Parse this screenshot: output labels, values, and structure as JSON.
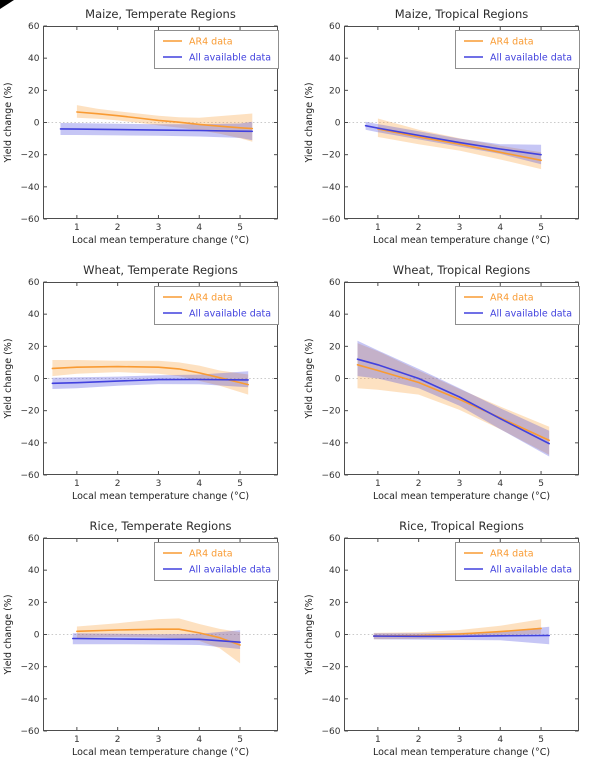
{
  "figure": {
    "background": "#ffffff",
    "corner_mark_color": "#000000"
  },
  "axes_common": {
    "xlabel": "Local mean temperature change (°C)",
    "ylabel": "Yield change (%)",
    "xlim": [
      0.17,
      5.93
    ],
    "ylim": [
      -60,
      60
    ],
    "xticks": [
      1,
      2,
      3,
      4,
      5
    ],
    "yticks": [
      60,
      40,
      20,
      0,
      -20,
      -40,
      -60
    ],
    "zero_line": true,
    "grid": false,
    "legend_position": "upper right"
  },
  "legend": {
    "entries": [
      {
        "label": "AR4 data",
        "color": "#F99B33"
      },
      {
        "label": "All available data",
        "color": "#4141DE"
      }
    ]
  },
  "colors": {
    "ar4": "#F99B33",
    "all_data": "#4141DE",
    "band_opacity": 0.3,
    "spine": "#4d4d4d",
    "zero_line": "#c9c9c9"
  },
  "chart_data": [
    {
      "type": "line",
      "title": "Maize, Temperate Regions",
      "xlabel": "Local mean temperature change (°C)",
      "ylabel": "Yield change (%)",
      "series": [
        {
          "name": "AR4 data",
          "color": "#F99B33",
          "x": [
            1,
            1.5,
            2,
            2.5,
            3,
            3.5,
            4,
            4.5,
            5,
            5.3
          ],
          "y": [
            6.5,
            5.5,
            4.2,
            2.8,
            1.3,
            0.2,
            -1.2,
            -2.3,
            -3.3,
            -3.8
          ],
          "band_lo": [
            3,
            2.3,
            1.3,
            -0.2,
            -1.8,
            -3.2,
            -4.8,
            -7,
            -9.8,
            -12
          ],
          "band_hi": [
            10.8,
            8.6,
            7,
            5.6,
            4.2,
            3.3,
            3,
            4,
            5,
            5.6
          ]
        },
        {
          "name": "All available data",
          "color": "#4141DE",
          "x": [
            0.6,
            1,
            2,
            3,
            4,
            5,
            5.3
          ],
          "y": [
            -4,
            -4.1,
            -4.4,
            -4.7,
            -5,
            -5.4,
            -5.5
          ],
          "band_lo": [
            -7.8,
            -7.8,
            -8,
            -8.3,
            -8.7,
            -9.6,
            -11
          ],
          "band_hi": [
            -0.3,
            -0.4,
            -0.8,
            -1.1,
            -1.1,
            -0.6,
            0.5
          ]
        }
      ]
    },
    {
      "type": "line",
      "title": "Maize, Tropical Regions",
      "xlabel": "Local mean temperature change (°C)",
      "ylabel": "Yield change (%)",
      "series": [
        {
          "name": "AR4 data",
          "color": "#F99B33",
          "x": [
            1,
            2,
            3,
            4,
            5
          ],
          "y": [
            -4,
            -9,
            -13.5,
            -18.5,
            -23.5
          ],
          "band_lo": [
            -9,
            -13.5,
            -17.5,
            -23,
            -29
          ],
          "band_hi": [
            2.5,
            -4.5,
            -9.8,
            -14.5,
            -18.5
          ]
        },
        {
          "name": "All available data",
          "color": "#4141DE",
          "x": [
            0.7,
            1,
            2,
            3,
            4,
            5
          ],
          "y": [
            -2,
            -3.5,
            -8,
            -12.5,
            -16.5,
            -20
          ],
          "band_lo": [
            -4.5,
            -6,
            -10.5,
            -15,
            -19.5,
            -26
          ],
          "band_hi": [
            0.5,
            -1,
            -5.5,
            -10,
            -13.5,
            -13.8
          ]
        }
      ]
    },
    {
      "type": "line",
      "title": "Wheat, Temperate Regions",
      "xlabel": "Local mean temperature change (°C)",
      "ylabel": "Yield change (%)",
      "series": [
        {
          "name": "AR4 data",
          "color": "#F99B33",
          "x": [
            0.4,
            1,
            2,
            3,
            3.5,
            4,
            4.5,
            5.2
          ],
          "y": [
            6.3,
            7,
            7.4,
            7,
            6,
            3.5,
            0.5,
            -3.8
          ],
          "band_lo": [
            1.5,
            3,
            4,
            3,
            1.5,
            -1.5,
            -4.5,
            -10
          ],
          "band_hi": [
            11.5,
            11.5,
            11,
            11,
            10,
            8,
            5,
            2.5
          ]
        },
        {
          "name": "All available data",
          "color": "#4141DE",
          "x": [
            0.4,
            1,
            2,
            3,
            4,
            5.2
          ],
          "y": [
            -3,
            -2.6,
            -1.6,
            -0.7,
            -0.6,
            -0.9
          ],
          "band_lo": [
            -6.5,
            -6,
            -4.5,
            -3.5,
            -3.6,
            -5.5
          ],
          "band_hi": [
            0.5,
            0.8,
            1.2,
            2,
            2.4,
            4.5
          ]
        }
      ]
    },
    {
      "type": "line",
      "title": "Wheat, Tropical Regions",
      "xlabel": "Local mean temperature change (°C)",
      "ylabel": "Yield change (%)",
      "series": [
        {
          "name": "AR4 data",
          "color": "#F99B33",
          "x": [
            0.5,
            1,
            2,
            3,
            4,
            5.2
          ],
          "y": [
            8.5,
            5,
            -2.5,
            -13,
            -24.5,
            -38.5
          ],
          "band_lo": [
            -6,
            -7,
            -10,
            -19.5,
            -31.5,
            -47.5
          ],
          "band_hi": [
            22,
            17,
            5,
            -6.5,
            -17.5,
            -30
          ]
        },
        {
          "name": "All available data",
          "color": "#4141DE",
          "x": [
            0.5,
            1,
            2,
            3,
            4,
            5.2
          ],
          "y": [
            12,
            8.5,
            0,
            -11.5,
            -25,
            -40.5
          ],
          "band_lo": [
            1.5,
            0,
            -6,
            -17,
            -31.5,
            -48.5
          ],
          "band_hi": [
            23.5,
            17.5,
            6,
            -6,
            -18.5,
            -32.5
          ]
        }
      ]
    },
    {
      "type": "line",
      "title": "Rice, Temperate Regions",
      "xlabel": "Local mean temperature change (°C)",
      "ylabel": "Yield change (%)",
      "series": [
        {
          "name": "AR4 data",
          "color": "#F99B33",
          "x": [
            1,
            2,
            3,
            3.5,
            4,
            4.5,
            5
          ],
          "y": [
            2,
            2.8,
            3.3,
            3.3,
            1,
            -2,
            -6.5
          ],
          "band_lo": [
            -2.2,
            -1.5,
            -1.8,
            -2.5,
            -4,
            -8.5,
            -18
          ],
          "band_hi": [
            5,
            7,
            9.6,
            10,
            6.5,
            3.5,
            1.5
          ]
        },
        {
          "name": "All available data",
          "color": "#4141DE",
          "x": [
            0.9,
            2,
            3,
            4,
            5
          ],
          "y": [
            -2.5,
            -2.8,
            -3,
            -3,
            -4.8
          ],
          "band_lo": [
            -6,
            -6,
            -6.2,
            -6.5,
            -9
          ],
          "band_hi": [
            0.8,
            0.5,
            0.2,
            0.5,
            2.6
          ]
        }
      ]
    },
    {
      "type": "line",
      "title": "Rice, Tropical Regions",
      "xlabel": "Local mean temperature change (°C)",
      "ylabel": "Yield change (%)",
      "series": [
        {
          "name": "AR4 data",
          "color": "#F99B33",
          "x": [
            0.9,
            2,
            3,
            4,
            5
          ],
          "y": [
            -1,
            -0.6,
            0.3,
            1.8,
            3.8
          ],
          "band_lo": [
            -3,
            -2.6,
            -1.6,
            -0.5,
            0.5
          ],
          "band_hi": [
            1,
            1.4,
            2.8,
            5.5,
            9.5
          ]
        },
        {
          "name": "All available data",
          "color": "#4141DE",
          "x": [
            0.9,
            2,
            3,
            4,
            5.2
          ],
          "y": [
            -1,
            -1.1,
            -1.1,
            -0.8,
            -0.6
          ],
          "band_lo": [
            -3,
            -3.2,
            -3.4,
            -3.6,
            -6
          ],
          "band_hi": [
            0.8,
            0.8,
            1,
            1.8,
            4.8
          ]
        }
      ]
    }
  ]
}
